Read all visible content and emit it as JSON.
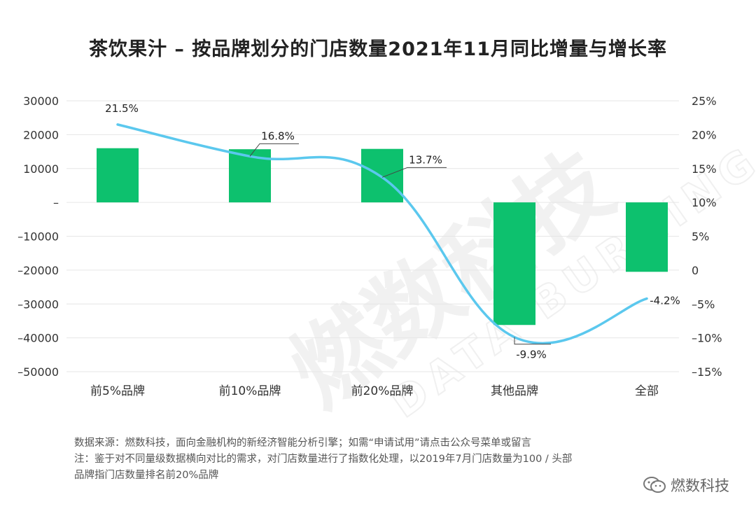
{
  "title": "茶饮果汁 – 按品牌划分的门店数量2021年11月同比增量与增长率",
  "watermark": {
    "cn": "燃数科技",
    "en": "DATA BURNING"
  },
  "chart_data": {
    "type": "bar",
    "categories": [
      "前5%品牌",
      "前10%品牌",
      "前20%品牌",
      "其他品牌",
      "全部"
    ],
    "series": [
      {
        "name": "同比增量",
        "type": "bar",
        "axis": "left",
        "color": "#0dc16e",
        "values": [
          16000,
          15700,
          15800,
          -36200,
          -20500
        ]
      },
      {
        "name": "增长率",
        "type": "line",
        "axis": "right",
        "color": "#5bc8ee",
        "values": [
          21.5,
          16.8,
          13.7,
          -9.9,
          -4.2
        ],
        "labels": [
          "21.5%",
          "16.8%",
          "13.7%",
          "-9.9%",
          "-4.2%"
        ]
      }
    ],
    "y_left": {
      "ylim": [
        -50000,
        30000
      ],
      "ticks": [
        30000,
        20000,
        10000,
        0,
        -10000,
        -20000,
        -30000,
        -40000,
        -50000
      ],
      "tick_labels": [
        "30000",
        "20000",
        "10000",
        "–",
        "–10000",
        "–20000",
        "–30000",
        "–40000",
        "–50000"
      ]
    },
    "y_right": {
      "ylim": [
        -15,
        25
      ],
      "ticks": [
        25,
        20,
        15,
        10,
        5,
        0,
        -5,
        -10,
        -15
      ],
      "tick_labels": [
        "25%",
        "20%",
        "15%",
        "10%",
        "5%",
        "0",
        "–5%",
        "–10%",
        "–15%"
      ]
    },
    "grid": true,
    "legend": "none"
  },
  "notes": [
    "数据来源：燃数科技，面向金融机构的新经济智能分析引擎；如需“申请试用”请点击公众号菜单或留言",
    "注：鉴于对不同量级数据横向对比的需求，对门店数量进行了指数化处理，以2019年7月门店数量为100 / 头部",
    "品牌指门店数量排名前20%品牌"
  ],
  "brand": "燃数科技"
}
